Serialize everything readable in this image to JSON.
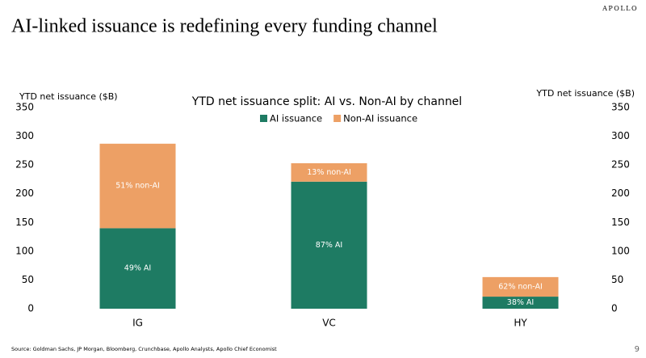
{
  "header": {
    "title": "AI-linked issuance is redefining every funding channel",
    "brand": "APOLLO"
  },
  "footer": {
    "source": "Source: Goldman Sachs, JP Morgan, Bloomberg, Crunchbase, Apollo Analysts, Apollo Chief Economist",
    "page": "9"
  },
  "chart_data": {
    "type": "stacked_bar",
    "title": "YTD net issuance split: AI vs. Non-AI by channel",
    "ylabel": "YTD net issuance ($B)",
    "y2label": "YTD net issuance ($B)",
    "categories": [
      "IG",
      "VC",
      "HY"
    ],
    "series": [
      {
        "name": "AI issuance",
        "color": "#1e7b63",
        "values": [
          140,
          221,
          21
        ],
        "annotations": [
          "49% AI",
          "87% AI",
          "38% AI"
        ]
      },
      {
        "name": "Non-AI issuance",
        "color": "#eda065",
        "values": [
          147,
          32,
          34
        ],
        "annotations": [
          "51% non-AI",
          "13% non-AI",
          "62% non-AI"
        ]
      }
    ],
    "ylim": [
      0,
      350
    ],
    "yticks": [
      0,
      50,
      100,
      150,
      200,
      250,
      300,
      350
    ],
    "y2lim": [
      0,
      350
    ],
    "y2ticks": [
      0,
      50,
      100,
      150,
      200,
      250,
      300,
      350
    ],
    "grid": false,
    "legend": "top"
  }
}
